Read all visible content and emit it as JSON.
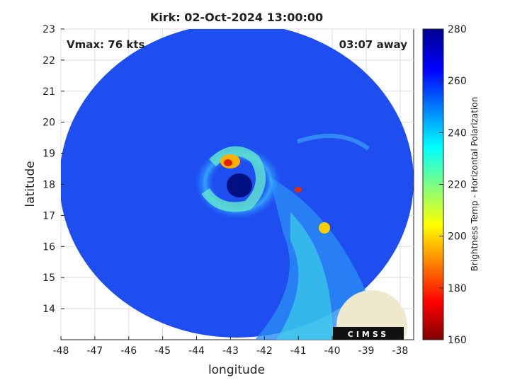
{
  "chart_data": {
    "type": "image",
    "title": "Kirk: 02-Oct-2024 13:00:00",
    "xlabel": "longitude",
    "ylabel": "latitude",
    "xlim": [
      -48,
      -37.6
    ],
    "xticks": [
      -48,
      -47,
      -46,
      -45,
      -44,
      -43,
      -42,
      -41,
      -40,
      -39,
      -38
    ],
    "ylim": [
      13,
      23
    ],
    "yticks": [
      14,
      15,
      16,
      17,
      18,
      19,
      20,
      21,
      22,
      23
    ],
    "annotations": [
      "Vmax: 76 kts",
      "03:07 away"
    ],
    "logo": "CIMSS",
    "colorbar": {
      "label": "Brightness Temp - Horizontal Polarization",
      "lim": [
        160,
        280
      ],
      "ticks": [
        160,
        180,
        200,
        220,
        240,
        260,
        280
      ]
    },
    "grid": true
  }
}
